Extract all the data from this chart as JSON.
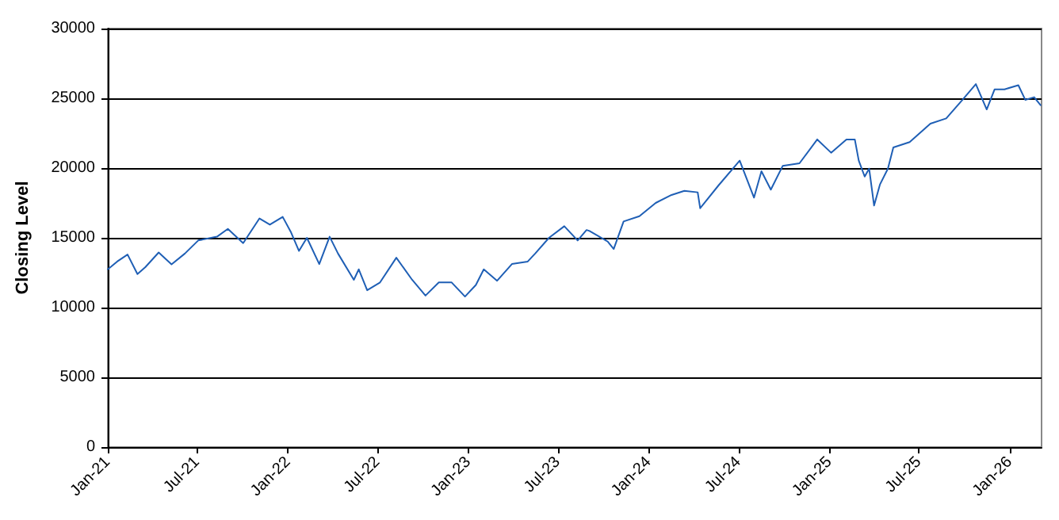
{
  "chart_data": {
    "type": "line",
    "ylabel": "Closing Level",
    "x": [
      "2021-01-01",
      "2021-01-20",
      "2021-02-10",
      "2021-03-02",
      "2021-03-18",
      "2021-04-14",
      "2021-05-10",
      "2021-06-06",
      "2021-07-03",
      "2021-08-10",
      "2021-09-01",
      "2021-10-02",
      "2021-11-04",
      "2021-11-25",
      "2021-12-21",
      "2022-01-07",
      "2022-01-23",
      "2022-02-08",
      "2022-03-05",
      "2022-03-26",
      "2022-04-12",
      "2022-05-14",
      "2022-05-24",
      "2022-06-10",
      "2022-07-06",
      "2022-08-08",
      "2022-09-09",
      "2022-10-06",
      "2022-11-02",
      "2022-11-28",
      "2022-12-25",
      "2023-01-16",
      "2023-02-01",
      "2023-02-28",
      "2023-03-30",
      "2023-05-01",
      "2023-05-16",
      "2023-06-13",
      "2023-07-14",
      "2023-08-10",
      "2023-08-28",
      "2023-09-03",
      "2023-10-10",
      "2023-10-22",
      "2023-11-11",
      "2023-12-13",
      "2024-01-15",
      "2024-02-16",
      "2024-03-13",
      "2024-04-09",
      "2024-04-14",
      "2024-05-21",
      "2024-07-03",
      "2024-08-01",
      "2024-08-16",
      "2024-09-04",
      "2024-09-28",
      "2024-11-01",
      "2024-12-07",
      "2025-01-04",
      "2025-02-04",
      "2025-02-21",
      "2025-03-01",
      "2025-03-13",
      "2025-03-22",
      "2025-04-01",
      "2025-04-13",
      "2025-04-29",
      "2025-05-10",
      "2025-06-12",
      "2025-07-24",
      "2025-08-25",
      "2025-09-27",
      "2025-10-24",
      "2025-11-15",
      "2025-12-01",
      "2025-12-21",
      "2026-01-18",
      "2026-02-01",
      "2026-02-19",
      "2026-03-04"
    ],
    "series": [
      {
        "color": "#1f5fb5",
        "values": [
          12740,
          13300,
          13800,
          12400,
          12900,
          13950,
          13100,
          13870,
          14810,
          15080,
          15640,
          14620,
          16390,
          15940,
          16500,
          15380,
          14060,
          15000,
          13120,
          15080,
          13870,
          11990,
          12740,
          11240,
          11800,
          13570,
          11990,
          10860,
          11800,
          11800,
          10790,
          11620,
          12740,
          11920,
          13120,
          13300,
          13870,
          15000,
          15830,
          14810,
          15560,
          15490,
          14730,
          14200,
          16170,
          16550,
          17500,
          18070,
          18370,
          18260,
          17120,
          18750,
          20530,
          17880,
          19770,
          18450,
          20150,
          20340,
          22050,
          21100,
          22050,
          22050,
          20530,
          19390,
          19960,
          17310,
          18830,
          19960,
          21480,
          21860,
          23180,
          23560,
          24890,
          26020,
          24200,
          25640,
          25640,
          25940,
          24890,
          25080,
          24510
        ]
      }
    ],
    "xlim": [
      "2021-01-01",
      "2026-03-06"
    ],
    "xticks": [
      {
        "value": "2021-01-01",
        "label": "Jan-21"
      },
      {
        "value": "2021-07-01",
        "label": "Jul-21"
      },
      {
        "value": "2022-01-01",
        "label": "Jan-22"
      },
      {
        "value": "2022-07-01",
        "label": "Jul-22"
      },
      {
        "value": "2023-01-01",
        "label": "Jan-23"
      },
      {
        "value": "2023-07-01",
        "label": "Jul-23"
      },
      {
        "value": "2024-01-01",
        "label": "Jan-24"
      },
      {
        "value": "2024-07-01",
        "label": "Jul-24"
      },
      {
        "value": "2025-01-01",
        "label": "Jan-25"
      },
      {
        "value": "2025-07-01",
        "label": "Jul-25"
      },
      {
        "value": "2026-01-01",
        "label": "Jan-26"
      }
    ],
    "ylim": [
      0,
      30000
    ],
    "yticks": [
      0,
      5000,
      10000,
      15000,
      20000,
      25000,
      30000
    ],
    "grid": "y",
    "marker": "none",
    "line_style": "solid"
  }
}
